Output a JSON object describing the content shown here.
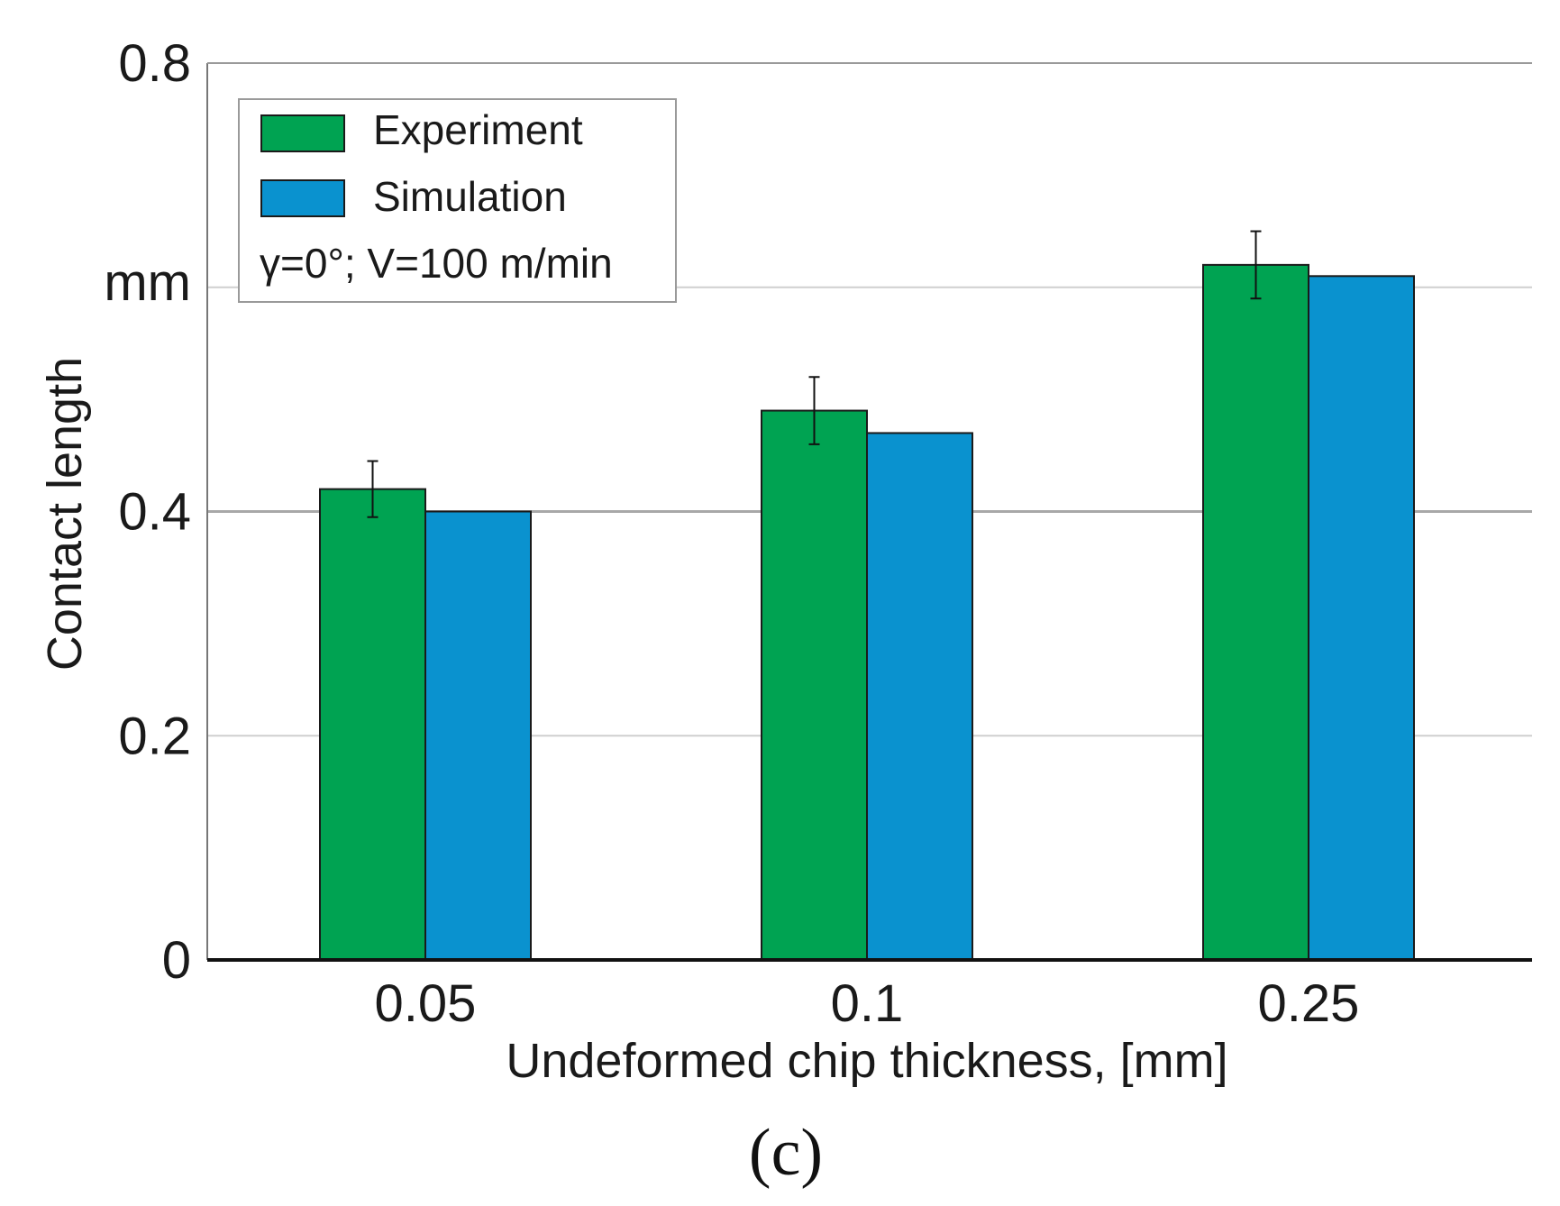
{
  "chart_data": {
    "type": "bar",
    "categories": [
      "0.05",
      "0.1",
      "0.25"
    ],
    "series": [
      {
        "name": "Experiment",
        "color": "#00a352",
        "values": [
          0.42,
          0.49,
          0.62
        ],
        "errors": [
          0.025,
          0.03,
          0.03
        ]
      },
      {
        "name": "Simulation",
        "color": "#0a92cf",
        "values": [
          0.4,
          0.47,
          0.61
        ]
      }
    ],
    "title": "",
    "xlabel": "Undeformed chip thickness, [mm]",
    "ylabel": "Contact length",
    "y_unit_label": "mm",
    "ylim": [
      0,
      0.8
    ],
    "yticks": [
      "0",
      "0.2",
      "0.4",
      "0.8"
    ],
    "grid": true,
    "legend_position": "top-left",
    "legend_note": "γ=0°; V=100 m/min",
    "panel_label": "(c)"
  }
}
